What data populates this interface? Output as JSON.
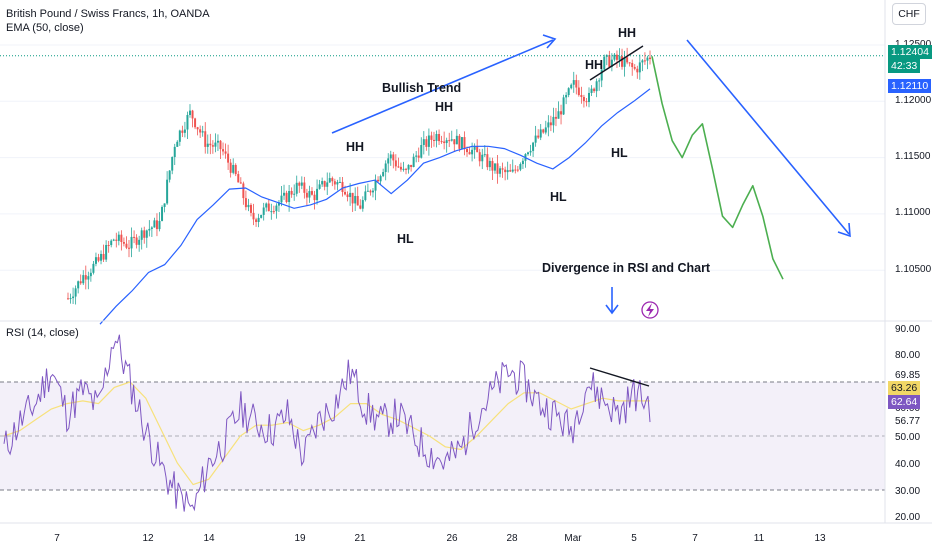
{
  "header": {
    "title": "British Pound / Swiss Francs, 1h, OANDA",
    "indicator": "EMA (50, close)",
    "currency_button": "CHF",
    "rsi_label": "RSI (14, close)"
  },
  "colors": {
    "up_candle": "#26a69a",
    "down_candle": "#ef5350",
    "ema": "#2962ff",
    "rsi_line": "#7e57c2",
    "rsi_ma": "#f7e17b",
    "projection": "#4caf50",
    "arrow": "#2962ff",
    "current_price_bg": "#089981",
    "ema_price_bg": "#2962ff",
    "rsi_tag_bg": "#7e57c2",
    "rsi_ma_tag_bg": "#f2d766"
  },
  "price_axis": {
    "ticks": [
      "1.12500",
      "1.12000",
      "1.11500",
      "1.11000",
      "1.10500"
    ],
    "current_price": "1.12404",
    "countdown": "42:33",
    "ema_value": "1.12110"
  },
  "rsi_axis": {
    "ticks": [
      "90.00",
      "80.00",
      "70.00",
      "60.00",
      "50.00",
      "40.00",
      "30.00",
      "20.00"
    ],
    "levels": [
      "69.85",
      "56.77"
    ],
    "rsi_value": "62.64",
    "rsi_ma_value": "63.26"
  },
  "time_axis": [
    "7",
    "12",
    "14",
    "19",
    "21",
    "26",
    "28",
    "Mar",
    "5",
    "7",
    "11",
    "13"
  ],
  "annotations": {
    "bullish_trend": "Bullish Trend",
    "divergence": "Divergence in RSI and Chart",
    "hh": "HH",
    "hl": "HL"
  },
  "chart_data": [
    {
      "type": "candlestick",
      "title": "British Pound / Swiss Francs, 1h, OANDA",
      "x_ticks": [
        "7",
        "12",
        "14",
        "19",
        "21",
        "26",
        "28",
        "Mar",
        "5",
        "7",
        "11",
        "13"
      ],
      "ylim": [
        1.101,
        1.1275
      ],
      "y_ticks": [
        1.125,
        1.12,
        1.115,
        1.11,
        1.105
      ],
      "series": [
        {
          "name": "Close",
          "values": [
            1.1025,
            1.1045,
            1.1058,
            1.1078,
            1.1072,
            1.1085,
            1.1092,
            1.1165,
            1.119,
            1.1163,
            1.1158,
            1.1132,
            1.1095,
            1.1105,
            1.1112,
            1.1125,
            1.1115,
            1.1131,
            1.1125,
            1.1105,
            1.1128,
            1.1152,
            1.1135,
            1.1158,
            1.117,
            1.1168,
            1.116,
            1.115,
            1.1138,
            1.1135,
            1.1158,
            1.1172,
            1.1188,
            1.1215,
            1.1202,
            1.1235,
            1.1237,
            1.1228,
            1.124
          ]
        },
        {
          "name": "EMA (50, close)",
          "values": [
            1.1002,
            1.1018,
            1.1032,
            1.1048,
            1.1055,
            1.1072,
            1.1095,
            1.1108,
            1.1122,
            1.1123,
            1.1115,
            1.111,
            1.1105,
            1.1108,
            1.1113,
            1.1123,
            1.1127,
            1.113,
            1.1118,
            1.113,
            1.1145,
            1.115,
            1.1156,
            1.116,
            1.116,
            1.1158,
            1.1152,
            1.1145,
            1.114,
            1.115,
            1.1163,
            1.1178,
            1.119,
            1.12,
            1.1211
          ]
        }
      ],
      "current_price": 1.12404,
      "ema_last": 1.1211,
      "projection_path": [
        1.124,
        1.1198,
        1.1165,
        1.115,
        1.117,
        1.118,
        1.114,
        1.1098,
        1.1088,
        1.1108,
        1.1125,
        1.1098,
        1.106,
        1.1042
      ]
    },
    {
      "type": "line",
      "title": "RSI (14, close)",
      "ylim": [
        18,
        92
      ],
      "y_ticks": [
        90,
        80,
        70,
        60,
        50,
        40,
        30,
        20
      ],
      "bands": [
        70,
        30
      ],
      "series": [
        {
          "name": "RSI",
          "values": [
            45,
            55,
            62,
            75,
            58,
            67,
            60,
            88,
            70,
            52,
            38,
            28,
            22,
            40,
            48,
            60,
            55,
            52,
            58,
            42,
            56,
            62,
            74,
            60,
            55,
            58,
            50,
            44,
            40,
            45,
            58,
            66,
            74,
            70,
            62,
            58,
            52,
            70,
            64,
            58,
            66,
            62
          ]
        },
        {
          "name": "RSI MA",
          "values": [
            50,
            52,
            56,
            60,
            62,
            63,
            62,
            68,
            70,
            64,
            52,
            40,
            32,
            34,
            42,
            50,
            54,
            54,
            55,
            52,
            54,
            57,
            62,
            62,
            58,
            56,
            53,
            50,
            46,
            45,
            50,
            56,
            62,
            66,
            66,
            63,
            60,
            62,
            64,
            63,
            63,
            63
          ]
        }
      ],
      "rsi_last": 62.64,
      "rsi_ma_last": 63.26
    }
  ]
}
